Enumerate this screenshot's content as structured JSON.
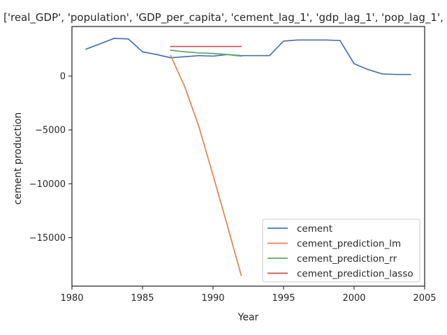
{
  "chart_data": {
    "type": "line",
    "title": "['real_GDP', 'population', 'GDP_per_capita', 'cement_lag_1', 'gdp_lag_1', 'pop_lag_1', '",
    "xlabel": "Year",
    "ylabel": "cement production",
    "xlim": [
      1980,
      2005
    ],
    "ylim": [
      -19500,
      4600
    ],
    "xticks": [
      1980,
      1985,
      1990,
      1995,
      2000,
      2005
    ],
    "yticks": [
      0,
      -5000,
      -10000,
      -15000
    ],
    "ytick_labels": [
      "0",
      "−5000",
      "−10000",
      "−15000"
    ],
    "grid": false,
    "legend_position": "lower-right",
    "series": [
      {
        "name": "cement",
        "color": "#4c72b0",
        "x": [
          1981,
          1982,
          1983,
          1984,
          1985,
          1986,
          1987,
          1988,
          1989,
          1990,
          1991,
          1992,
          1993,
          1994,
          1995,
          1996,
          1997,
          1998,
          1999,
          2000,
          2001,
          2002,
          2003,
          2004
        ],
        "y": [
          2500,
          3000,
          3500,
          3450,
          2250,
          2000,
          1700,
          1800,
          1900,
          1850,
          2000,
          1900,
          1900,
          1900,
          3250,
          3350,
          3350,
          3350,
          3300,
          1150,
          600,
          200,
          150,
          150
        ]
      },
      {
        "name": "cement_prediction_lm",
        "color": "#dd8452",
        "x": [
          1987,
          1988,
          1989,
          1990,
          1991,
          1992
        ],
        "y": [
          1900,
          -1000,
          -4700,
          -9200,
          -13800,
          -18500
        ]
      },
      {
        "name": "cement_prediction_rr",
        "color": "#55a868",
        "x": [
          1987,
          1988,
          1989,
          1990,
          1991,
          1992
        ],
        "y": [
          2400,
          2250,
          2150,
          2100,
          2000,
          1850
        ]
      },
      {
        "name": "cement_prediction_lasso",
        "color": "#c44e52",
        "x": [
          1987,
          1988,
          1989,
          1990,
          1991,
          1992
        ],
        "y": [
          2750,
          2750,
          2750,
          2750,
          2750,
          2750
        ]
      }
    ]
  }
}
